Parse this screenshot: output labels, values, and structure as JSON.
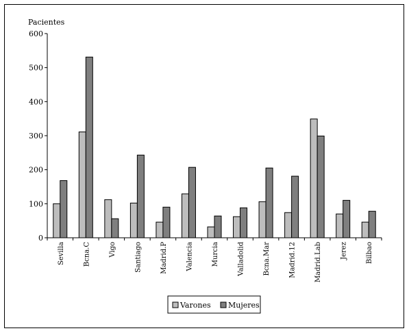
{
  "chart_data": {
    "type": "bar",
    "ylabel": "Pacientes",
    "xlabel": "",
    "title": "",
    "ylim": [
      0,
      600
    ],
    "yticks": [
      0,
      100,
      200,
      300,
      400,
      500,
      600
    ],
    "grid": false,
    "legend_position": "bottom-center",
    "categories": [
      "Sevilla",
      "Bcna.C",
      "Vigo",
      "Santiago",
      "Madrid.P",
      "Valencia",
      "Murcia",
      "Valladolid",
      "Bcna.Mar",
      "Madrid.12",
      "Madrid.Lab",
      "Jerez",
      "Bilbao"
    ],
    "series": [
      {
        "name": "Varones",
        "color": "#bdbdbd",
        "values": [
          100,
          311,
          112,
          102,
          46,
          129,
          32,
          62,
          106,
          74,
          349,
          70,
          46
        ]
      },
      {
        "name": "Mujeres",
        "color": "#7f7f7f",
        "values": [
          168,
          531,
          56,
          243,
          90,
          207,
          64,
          88,
          205,
          181,
          299,
          110,
          78
        ]
      }
    ]
  }
}
